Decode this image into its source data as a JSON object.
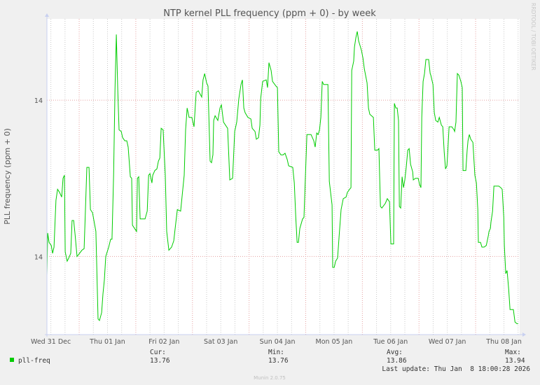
{
  "chart_data": {
    "type": "line",
    "title": "NTP kernel PLL frequency (ppm + 0) - by week",
    "ylabel": "PLL frequency (ppm + 0)",
    "xlabel": "",
    "xlim": [
      "2025-12-31 10:20",
      "2026-01-08 18:40"
    ],
    "ylim": [
      13.75,
      13.952
    ],
    "grid": true,
    "y_gridlines": [
      13.8,
      13.9
    ],
    "y_tick_labels": [
      "14",
      "14"
    ],
    "x_ticks": [
      {
        "at": "2025-12-31 12:00",
        "label": "Wed 31 Dec"
      },
      {
        "at": "2026-01-01 12:00",
        "label": "Thu 01 Jan"
      },
      {
        "at": "2026-01-02 12:00",
        "label": "Fri 02 Jan"
      },
      {
        "at": "2026-01-03 12:00",
        "label": "Sat 03 Jan"
      },
      {
        "at": "2026-01-04 12:00",
        "label": "Sun 04 Jan"
      },
      {
        "at": "2026-01-05 12:00",
        "label": "Mon 05 Jan"
      },
      {
        "at": "2026-01-06 12:00",
        "label": "Tue 06 Jan"
      },
      {
        "at": "2026-01-07 12:00",
        "label": "Wed 07 Jan"
      },
      {
        "at": "2026-01-08 12:00",
        "label": "Thu 08 Jan"
      }
    ],
    "colors": {
      "series": "#00cc00",
      "major_grid": "#e5a0a0",
      "minor_grid": "#c8c8c8",
      "axis": "#c8d0f0",
      "plot_bg": "#ffffff",
      "page_bg": "#f0f0f0"
    },
    "series": [
      {
        "name": "pll-freq",
        "x": [
          "2025-12-31 10:20",
          "2025-12-31 10:40",
          "2025-12-31 11:15",
          "2025-12-31 12:10",
          "2025-12-31 12:45",
          "2025-12-31 13:20",
          "2025-12-31 14:10",
          "2025-12-31 14:50",
          "2025-12-31 15:40",
          "2025-12-31 16:35",
          "2025-12-31 17:10",
          "2025-12-31 17:45",
          "2025-12-31 18:05",
          "2025-12-31 18:55",
          "2025-12-31 19:35",
          "2025-12-31 20:25",
          "2025-12-31 21:00",
          "2025-12-31 21:40",
          "2025-12-31 22:15",
          "2025-12-31 23:05",
          "2025-12-31 23:40",
          "2026-01-01 01:10",
          "2026-01-01 02:05",
          "2026-01-01 02:40",
          "2026-01-01 03:15",
          "2026-01-01 04:10",
          "2026-01-01 04:45",
          "2026-01-01 05:40",
          "2026-01-01 07:05",
          "2026-01-01 08:00",
          "2026-01-01 08:35",
          "2026-01-01 09:30",
          "2026-01-01 10:05",
          "2026-01-01 10:40",
          "2026-01-01 11:15",
          "2026-01-01 12:30",
          "2026-01-01 13:20",
          "2026-01-01 13:55",
          "2026-01-01 14:35",
          "2026-01-01 15:10",
          "2026-01-01 15:45",
          "2026-01-01 16:20",
          "2026-01-01 16:55",
          "2026-01-01 17:50",
          "2026-01-01 18:25",
          "2026-01-01 19:20",
          "2026-01-01 20:10",
          "2026-01-01 20:45",
          "2026-01-01 21:40",
          "2026-01-01 22:15",
          "2026-01-01 22:35",
          "2026-01-02 00:20",
          "2026-01-02 00:40",
          "2026-01-02 01:15",
          "2026-01-02 01:50",
          "2026-01-02 03:55",
          "2026-01-02 04:50",
          "2026-01-02 05:25",
          "2026-01-02 06:00",
          "2026-01-02 06:50",
          "2026-01-02 07:10",
          "2026-01-02 08:05",
          "2026-01-02 08:55",
          "2026-01-02 09:35",
          "2026-01-02 10:10",
          "2026-01-02 10:45",
          "2026-01-02 11:35",
          "2026-01-02 12:30",
          "2026-01-02 13:05",
          "2026-01-02 14:00",
          "2026-01-02 15:10",
          "2026-01-02 16:05",
          "2026-01-02 16:40",
          "2026-01-02 17:35",
          "2026-01-02 19:00",
          "2026-01-02 20:30",
          "2026-01-02 21:05",
          "2026-01-02 21:45",
          "2026-01-02 22:35",
          "2026-01-02 23:45",
          "2026-01-03 00:40",
          "2026-01-03 01:35",
          "2026-01-03 02:30",
          "2026-01-03 03:55",
          "2026-01-03 04:30",
          "2026-01-03 05:10",
          "2026-01-03 06:00",
          "2026-01-03 06:35",
          "2026-01-03 07:30",
          "2026-01-03 08:05",
          "2026-01-03 08:40",
          "2026-01-03 09:00",
          "2026-01-03 09:35",
          "2026-01-03 10:45",
          "2026-01-03 11:40",
          "2026-01-03 12:15",
          "2026-01-03 13:10",
          "2026-01-03 14:55",
          "2026-01-03 15:50",
          "2026-01-03 17:00",
          "2026-01-03 17:55",
          "2026-01-03 18:45",
          "2026-01-03 19:40",
          "2026-01-03 20:35",
          "2026-01-03 21:10",
          "2026-01-03 21:45",
          "2026-01-03 22:20",
          "2026-01-03 23:30",
          "2026-01-04 00:45",
          "2026-01-04 01:20",
          "2026-01-04 02:30",
          "2026-01-04 03:05",
          "2026-01-04 04:00",
          "2026-01-04 04:35",
          "2026-01-04 04:55",
          "2026-01-04 05:45",
          "2026-01-04 07:15",
          "2026-01-04 07:50",
          "2026-01-04 08:25",
          "2026-01-04 09:20",
          "2026-01-04 09:55",
          "2026-01-04 11:25",
          "2026-01-04 12:00",
          "2026-01-04 12:35",
          "2026-01-04 13:30",
          "2026-01-04 14:25",
          "2026-01-04 15:15",
          "2026-01-04 16:10",
          "2026-01-04 16:45",
          "2026-01-04 18:30",
          "2026-01-04 19:10",
          "2026-01-04 19:45",
          "2026-01-04 20:20",
          "2026-01-04 20:55",
          "2026-01-04 21:30",
          "2026-01-04 22:40",
          "2026-01-04 23:15",
          "2026-01-04 23:55",
          "2026-01-05 00:30",
          "2026-01-05 01:20",
          "2026-01-05 02:15",
          "2026-01-05 03:25",
          "2026-01-05 04:00",
          "2026-01-05 04:40",
          "2026-01-05 05:15",
          "2026-01-05 05:50",
          "2026-01-05 06:25",
          "2026-01-05 07:00",
          "2026-01-05 07:35",
          "2026-01-05 09:25",
          "2026-01-05 10:00",
          "2026-01-05 11:10",
          "2026-01-05 11:25",
          "2026-01-05 12:05",
          "2026-01-05 12:40",
          "2026-01-05 13:30",
          "2026-01-05 14:10",
          "2026-01-05 15:00",
          "2026-01-05 15:55",
          "2026-01-05 17:05",
          "2026-01-05 17:40",
          "2026-01-05 18:35",
          "2026-01-05 19:10",
          "2026-01-05 19:30",
          "2026-01-05 20:20",
          "2026-01-05 20:40",
          "2026-01-05 21:15",
          "2026-01-05 21:50",
          "2026-01-05 22:25",
          "2026-01-05 23:00",
          "2026-01-05 23:35",
          "2026-01-06 00:15",
          "2026-01-06 00:50",
          "2026-01-06 02:00",
          "2026-01-06 02:35",
          "2026-01-06 03:10",
          "2026-01-06 04:40",
          "2026-01-06 05:15",
          "2026-01-06 06:25",
          "2026-01-06 07:00",
          "2026-01-06 07:40",
          "2026-01-06 08:15",
          "2026-01-06 09:45",
          "2026-01-06 10:35",
          "2026-01-06 11:30",
          "2026-01-06 12:05",
          "2026-01-06 13:15",
          "2026-01-06 13:35",
          "2026-01-06 14:10",
          "2026-01-06 14:45",
          "2026-01-06 15:20",
          "2026-01-06 15:40",
          "2026-01-06 16:15",
          "2026-01-06 16:50",
          "2026-01-06 17:25",
          "2026-01-06 18:00",
          "2026-01-06 18:35",
          "2026-01-06 19:15",
          "2026-01-06 19:50",
          "2026-01-06 20:25",
          "2026-01-06 21:20",
          "2026-01-06 21:35",
          "2026-01-06 22:30",
          "2026-01-06 23:40",
          "2026-01-07 00:15",
          "2026-01-07 00:50",
          "2026-01-07 01:10",
          "2026-01-07 01:45",
          "2026-01-07 02:20",
          "2026-01-07 02:55",
          "2026-01-07 04:05",
          "2026-01-07 04:45",
          "2026-01-07 05:00",
          "2026-01-07 05:55",
          "2026-01-07 06:30",
          "2026-01-07 07:05",
          "2026-01-07 08:00",
          "2026-01-07 08:35",
          "2026-01-07 09:30",
          "2026-01-07 10:05",
          "2026-01-07 10:40",
          "2026-01-07 11:15",
          "2026-01-07 11:50",
          "2026-01-07 12:10",
          "2026-01-07 12:45",
          "2026-01-07 13:55",
          "2026-01-07 14:50",
          "2026-01-07 15:05",
          "2026-01-07 15:40",
          "2026-01-07 16:15",
          "2026-01-07 16:55",
          "2026-01-07 17:45",
          "2026-01-07 18:20",
          "2026-01-07 18:40",
          "2026-01-07 19:50",
          "2026-01-07 20:25",
          "2026-01-07 20:45",
          "2026-01-07 21:20",
          "2026-01-07 21:55",
          "2026-01-07 22:50",
          "2026-01-07 23:40",
          "2026-01-08 00:20",
          "2026-01-08 00:55",
          "2026-01-08 01:10",
          "2026-01-08 02:05",
          "2026-01-08 02:40",
          "2026-01-08 03:35",
          "2026-01-08 04:30",
          "2026-01-08 05:20",
          "2026-01-08 05:40",
          "2026-01-08 06:15",
          "2026-01-08 06:30",
          "2026-01-08 07:10",
          "2026-01-08 07:45",
          "2026-01-08 08:35",
          "2026-01-08 09:50",
          "2026-01-08 10:40",
          "2026-01-08 11:15",
          "2026-01-08 11:55",
          "2026-01-08 12:10",
          "2026-01-08 12:45",
          "2026-01-08 13:20",
          "2026-01-08 14:00",
          "2026-01-08 14:35",
          "2026-01-08 15:25",
          "2026-01-08 16:00",
          "2026-01-08 16:40",
          "2026-01-08 17:30",
          "2026-01-08 18:00"
        ],
        "y": [
          13.788,
          13.815,
          13.809,
          13.807,
          13.802,
          13.806,
          13.836,
          13.843,
          13.841,
          13.838,
          13.85,
          13.852,
          13.803,
          13.797,
          13.799,
          13.802,
          13.823,
          13.823,
          13.814,
          13.8,
          13.801,
          13.804,
          13.805,
          13.83,
          13.857,
          13.857,
          13.83,
          13.828,
          13.816,
          13.76,
          13.759,
          13.764,
          13.776,
          13.785,
          13.8,
          13.806,
          13.811,
          13.811,
          13.852,
          13.907,
          13.942,
          13.907,
          13.881,
          13.88,
          13.876,
          13.874,
          13.874,
          13.87,
          13.851,
          13.85,
          13.82,
          13.816,
          13.85,
          13.851,
          13.824,
          13.824,
          13.829,
          13.852,
          13.853,
          13.847,
          13.852,
          13.855,
          13.856,
          13.861,
          13.863,
          13.882,
          13.881,
          13.852,
          13.816,
          13.804,
          13.806,
          13.81,
          13.818,
          13.83,
          13.829,
          13.852,
          13.881,
          13.895,
          13.889,
          13.889,
          13.883,
          13.905,
          13.906,
          13.902,
          13.913,
          13.917,
          13.911,
          13.909,
          13.861,
          13.86,
          13.865,
          13.887,
          13.89,
          13.887,
          13.895,
          13.897,
          13.886,
          13.882,
          13.849,
          13.85,
          13.88,
          13.886,
          13.901,
          13.91,
          13.913,
          13.895,
          13.892,
          13.889,
          13.888,
          13.882,
          13.88,
          13.875,
          13.876,
          13.884,
          13.901,
          13.912,
          13.913,
          13.908,
          13.924,
          13.919,
          13.912,
          13.909,
          13.908,
          13.867,
          13.865,
          13.865,
          13.866,
          13.862,
          13.858,
          13.857,
          13.847,
          13.826,
          13.809,
          13.809,
          13.818,
          13.824,
          13.825,
          13.853,
          13.878,
          13.878,
          13.878,
          13.874,
          13.87,
          13.879,
          13.878,
          13.881,
          13.889,
          13.912,
          13.91,
          13.91,
          13.848,
          13.833,
          13.793,
          13.793,
          13.797,
          13.799,
          13.813,
          13.83,
          13.837,
          13.838,
          13.841,
          13.843,
          13.844,
          13.919,
          13.925,
          13.934,
          13.94,
          13.944,
          13.938,
          13.935,
          13.932,
          13.927,
          13.92,
          13.911,
          13.895,
          13.891,
          13.889,
          13.868,
          13.868,
          13.869,
          13.832,
          13.831,
          13.834,
          13.837,
          13.835,
          13.808,
          13.808,
          13.898,
          13.895,
          13.895,
          13.887,
          13.832,
          13.831,
          13.851,
          13.844,
          13.849,
          13.857,
          13.868,
          13.869,
          13.859,
          13.854,
          13.849,
          13.85,
          13.85,
          13.846,
          13.844,
          13.889,
          13.912,
          13.917,
          13.926,
          13.926,
          13.917,
          13.916,
          13.91,
          13.892,
          13.887,
          13.886,
          13.889,
          13.884,
          13.883,
          13.867,
          13.856,
          13.858,
          13.866,
          13.883,
          13.883,
          13.881,
          13.88,
          13.886,
          13.917,
          13.916,
          13.912,
          13.908,
          13.855,
          13.855,
          13.868,
          13.874,
          13.878,
          13.875,
          13.873,
          13.852,
          13.847,
          13.83,
          13.809,
          13.809,
          13.806,
          13.806,
          13.807,
          13.813,
          13.816,
          13.818,
          13.822,
          13.829,
          13.845,
          13.845,
          13.845,
          13.844,
          13.843,
          13.825,
          13.807,
          13.789,
          13.791,
          13.779,
          13.766,
          13.766,
          13.766,
          13.758,
          13.757,
          13.757
        ]
      }
    ]
  },
  "legend": {
    "series_name": "pll-freq",
    "cur_label": "Cur:",
    "cur": "13.76",
    "min_label": "Min:",
    "min": "13.76",
    "avg_label": "Avg:",
    "avg": "13.86",
    "max_label": "Max:",
    "max": "13.94",
    "last_update": "Last update: Thu Jan  8 18:00:28 2026"
  },
  "watermark": "RRDTOOL / TOBI OETIKER",
  "footer": "Munin 2.0.75"
}
